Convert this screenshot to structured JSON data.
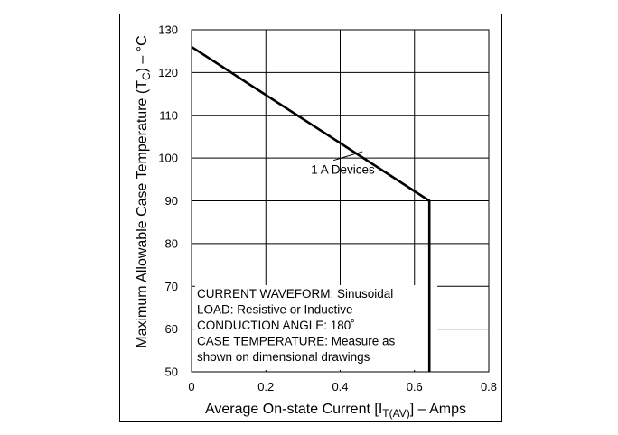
{
  "chart_data": {
    "type": "line",
    "title": "",
    "xlabel": "Average On-state Current [I",
    "xlabel_sub": "T(AV)",
    "xlabel_suffix": "] – Amps",
    "ylabel": "Maximum Allowable Case Temperature (T",
    "ylabel_sub": "C",
    "ylabel_suffix": ") – °C",
    "xlim": [
      0,
      0.8
    ],
    "ylim": [
      50,
      130
    ],
    "x_ticks": [
      0,
      0.2,
      0.4,
      0.6,
      0.8
    ],
    "y_ticks": [
      50,
      60,
      70,
      80,
      90,
      100,
      110,
      120,
      130
    ],
    "x_tick_labels": [
      "0",
      "0.2",
      "0.4",
      "0.6",
      "0.8"
    ],
    "y_tick_labels": [
      "50",
      "60",
      "70",
      "80",
      "90",
      "100",
      "110",
      "120",
      "130"
    ],
    "grid": true,
    "series": [
      {
        "name": "1 A Devices",
        "x": [
          0,
          0.64,
          0.64
        ],
        "y": [
          126,
          90,
          50
        ]
      }
    ],
    "annotation": {
      "text": "1 A Devices",
      "point": [
        0.46,
        101.5
      ],
      "label_at": [
        0.4,
        96.5
      ]
    },
    "notes": [
      "CURRENT WAVEFORM: Sinusoidal",
      "LOAD: Resistive or Inductive",
      "CONDUCTION ANGLE: 180˚",
      "CASE TEMPERATURE: Measure as",
      "shown on dimensional drawings"
    ]
  }
}
